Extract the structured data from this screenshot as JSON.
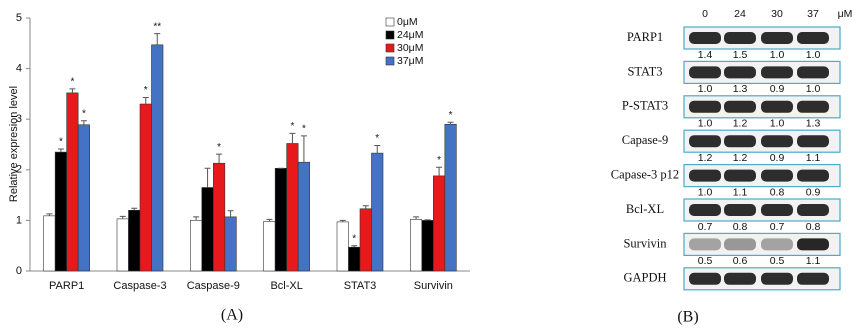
{
  "chart_data": {
    "type": "bar",
    "y_label": "Relative expresion level",
    "categories": [
      "PARP1",
      "Caspase-3",
      "Caspase-9",
      "Bcl-XL",
      "STAT3",
      "Survivin"
    ],
    "series": [
      {
        "name": "0μM",
        "color": "#ffffff",
        "values": [
          1.09,
          1.03,
          1.0,
          0.98,
          0.97,
          1.02
        ],
        "errors": [
          0.04,
          0.05,
          0.07,
          0.04,
          0.03,
          0.05
        ],
        "significance": [
          null,
          null,
          null,
          null,
          null,
          null
        ]
      },
      {
        "name": "24μM",
        "color": "#000000",
        "values": [
          2.35,
          1.2,
          1.65,
          2.03,
          0.47,
          1.0
        ],
        "errors": [
          0.06,
          0.04,
          0.38,
          0,
          0.03,
          0.01
        ],
        "significance": [
          "*",
          null,
          null,
          null,
          "*",
          null
        ]
      },
      {
        "name": "30μM",
        "color": "#e8191b",
        "values": [
          3.52,
          3.3,
          2.13,
          2.52,
          1.23,
          1.88
        ],
        "errors": [
          0.08,
          0.13,
          0.18,
          0.2,
          0.06,
          0.17
        ],
        "significance": [
          "*",
          "*",
          "*",
          "*",
          null,
          "*"
        ]
      },
      {
        "name": "37μM",
        "color": "#4472c4",
        "values": [
          2.89,
          4.47,
          1.07,
          2.15,
          2.33,
          2.9
        ],
        "errors": [
          0.08,
          0.22,
          0.12,
          0.52,
          0.15,
          0.04
        ],
        "significance": [
          "*",
          "**",
          null,
          "*",
          "*",
          "*"
        ]
      }
    ],
    "ylim": [
      0,
      5
    ],
    "yticks": [
      0,
      1,
      2,
      3,
      4,
      5
    ],
    "grid": false,
    "legend": "top-right"
  },
  "blot": {
    "columns": [
      "0",
      "24",
      "30",
      "37"
    ],
    "unit": "μM",
    "rows": [
      {
        "label": "PARP1",
        "values": [
          "1.4",
          "1.5",
          "1.0",
          "1.0"
        ]
      },
      {
        "label": "STAT3",
        "values": [
          "1.0",
          "1.3",
          "0.9",
          "1.0"
        ]
      },
      {
        "label": "P-STAT3",
        "values": [
          "1.0",
          "1.2",
          "1.0",
          "1.3"
        ]
      },
      {
        "label": "Capase-9",
        "values": [
          "1.2",
          "1.2",
          "0.9",
          "1.1"
        ]
      },
      {
        "label": "Capase-3 p12",
        "values": [
          "1.0",
          "1.1",
          "0.8",
          "0.9"
        ]
      },
      {
        "label": "Bcl-XL",
        "values": [
          "0.7",
          "0.8",
          "0.7",
          "0.8"
        ]
      },
      {
        "label": "Survivin",
        "values": [
          "0.5",
          "0.6",
          "0.5",
          "1.1"
        ]
      },
      {
        "label": "GAPDH",
        "values": []
      }
    ]
  },
  "panel_labels": [
    "(A)",
    "(B)"
  ]
}
